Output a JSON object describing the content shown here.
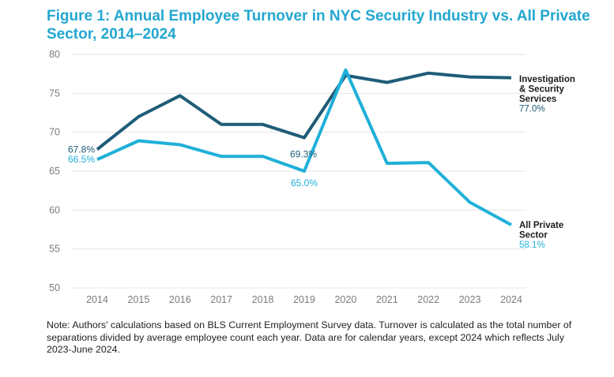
{
  "title": "Figure 1: Annual Employee Turnover in NYC Security Industry vs. All Private Sector, 2014–2024",
  "note": "Note: Authors' calculations based on BLS Current Employment Survey data. Turnover is calculated as the total number of separations divided by average employee count each year. Data are for calendar years, except 2024 which reflects July 2023-June 2024.",
  "colors": {
    "security": "#1f5c78",
    "private": "#1fb0d8",
    "grid": "#e4e4e4"
  },
  "chart_data": {
    "type": "line",
    "title": "Figure 1: Annual Employee Turnover in NYC Security Industry vs. All Private Sector, 2014–2024",
    "x": [
      "2014",
      "2015",
      "2016",
      "2017",
      "2018",
      "2019",
      "2020",
      "2021",
      "2022",
      "2023",
      "2024"
    ],
    "ylim": [
      50,
      80
    ],
    "yticks": [
      50,
      55,
      60,
      65,
      70,
      75,
      80
    ],
    "grid": "horizontal",
    "series": [
      {
        "key": "security",
        "name_lines": [
          "Investigation",
          "& Security",
          "Services"
        ],
        "values": [
          67.8,
          72.0,
          74.7,
          71.0,
          71.0,
          69.3,
          77.3,
          76.4,
          77.6,
          77.1,
          77.0
        ],
        "end_label": "77.0%",
        "point_labels": [
          {
            "index": 0,
            "text": "67.8%"
          },
          {
            "index": 5,
            "text": "69.3%"
          }
        ]
      },
      {
        "key": "private",
        "name_lines": [
          "All Private",
          "Sector"
        ],
        "values": [
          66.5,
          68.9,
          68.4,
          66.9,
          66.9,
          65.0,
          78.0,
          66.0,
          66.1,
          61.0,
          58.1
        ],
        "end_label": "58.1%",
        "point_labels": [
          {
            "index": 0,
            "text": "66.5%"
          },
          {
            "index": 5,
            "text": "65.0%"
          }
        ]
      }
    ]
  }
}
